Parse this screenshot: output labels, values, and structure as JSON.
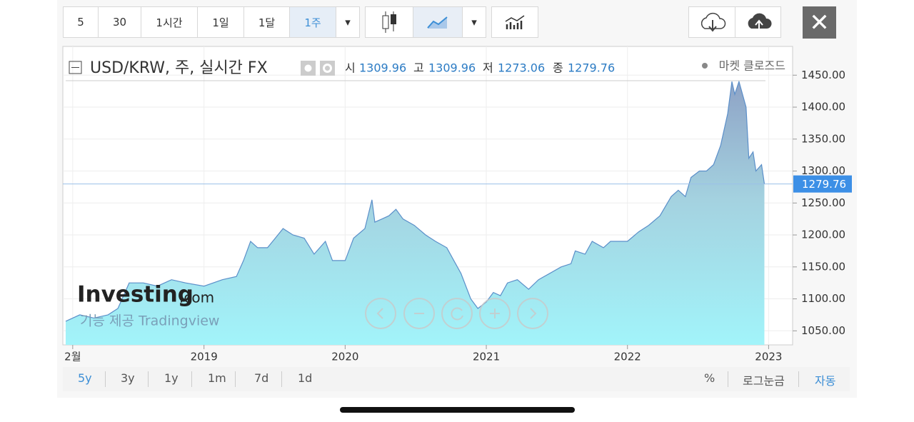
{
  "toolbar": {
    "intervals": [
      "5",
      "30",
      "1시간",
      "1일",
      "1달",
      "1주"
    ]
  },
  "chart_data": {
    "type": "area",
    "title": "USD/KRW, 주, 실시간 FX",
    "status": "마켓 클로즈드",
    "ohlc_labels": [
      "시",
      "고",
      "저",
      "종"
    ],
    "ohlc": [
      1309.96,
      1309.96,
      1273.06,
      1279.76
    ],
    "watermark": "Investing",
    "watermark_suffix": ".com",
    "credit": "기능 제공 Tradingview",
    "x": [
      2018.02,
      2018.12,
      2018.22,
      2018.32,
      2018.39,
      2018.47,
      2018.57,
      2018.67,
      2018.77,
      2018.87,
      2019.0,
      2019.13,
      2019.23,
      2019.28,
      2019.33,
      2019.38,
      2019.45,
      2019.56,
      2019.63,
      2019.71,
      2019.78,
      2019.86,
      2019.91,
      2020.0,
      2020.06,
      2020.14,
      2020.19,
      2020.21,
      2020.26,
      2020.31,
      2020.36,
      2020.41,
      2020.49,
      2020.57,
      2020.64,
      2020.72,
      2020.77,
      2020.82,
      2020.89,
      2020.94,
      2021.0,
      2021.05,
      2021.1,
      2021.15,
      2021.22,
      2021.3,
      2021.37,
      2021.45,
      2021.53,
      2021.6,
      2021.63,
      2021.7,
      2021.75,
      2021.83,
      2021.88,
      2022.0,
      2022.08,
      2022.15,
      2022.23,
      2022.31,
      2022.36,
      2022.41,
      2022.45,
      2022.51,
      2022.56,
      2022.61,
      2022.66,
      2022.71,
      2022.74,
      2022.76,
      2022.79,
      2022.84,
      2022.86,
      2022.89,
      2022.91,
      2022.95,
      2022.97
    ],
    "series": [
      {
        "color": "#5b8fc9",
        "values": [
          1065,
          1075,
          1070,
          1075,
          1085,
          1125,
          1125,
          1120,
          1130,
          1125,
          1120,
          1130,
          1135,
          1160,
          1190,
          1180,
          1180,
          1210,
          1200,
          1195,
          1170,
          1190,
          1160,
          1160,
          1195,
          1210,
          1255,
          1220,
          1225,
          1230,
          1240,
          1225,
          1215,
          1200,
          1190,
          1180,
          1160,
          1140,
          1100,
          1085,
          1095,
          1110,
          1105,
          1125,
          1130,
          1115,
          1130,
          1140,
          1150,
          1155,
          1175,
          1170,
          1190,
          1180,
          1190,
          1190,
          1205,
          1215,
          1230,
          1260,
          1270,
          1260,
          1290,
          1300,
          1300,
          1310,
          1340,
          1390,
          1440,
          1420,
          1440,
          1400,
          1320,
          1330,
          1300,
          1310,
          1279.76
        ]
      }
    ],
    "xlim": [
      2018.0,
      2023.17
    ],
    "xticks": [
      {
        "value": 2018.07,
        "label": "2월"
      },
      2019,
      2020,
      2021,
      2022,
      2023
    ],
    "ylim": [
      1028,
      1495
    ],
    "yticks": [
      {
        "value": 1050,
        "label": "1050.00"
      },
      {
        "value": 1100,
        "label": "1100.00"
      },
      {
        "value": 1150,
        "label": "1150.00"
      },
      {
        "value": 1200,
        "label": "1200.00"
      },
      {
        "value": 1250,
        "label": "1250.00"
      },
      {
        "value": 1300,
        "label": "1300.00"
      },
      {
        "value": 1350,
        "label": "1350.00"
      },
      {
        "value": 1400,
        "label": "1400.00"
      },
      {
        "value": 1450,
        "label": "1450.00"
      }
    ],
    "last_label": "1279.76",
    "grid": true
  },
  "range_bar": {
    "ranges": [
      "5y",
      "3y",
      "1y",
      "1m",
      "7d",
      "1d"
    ],
    "options": [
      "%",
      "로그눈금",
      "자동"
    ]
  }
}
